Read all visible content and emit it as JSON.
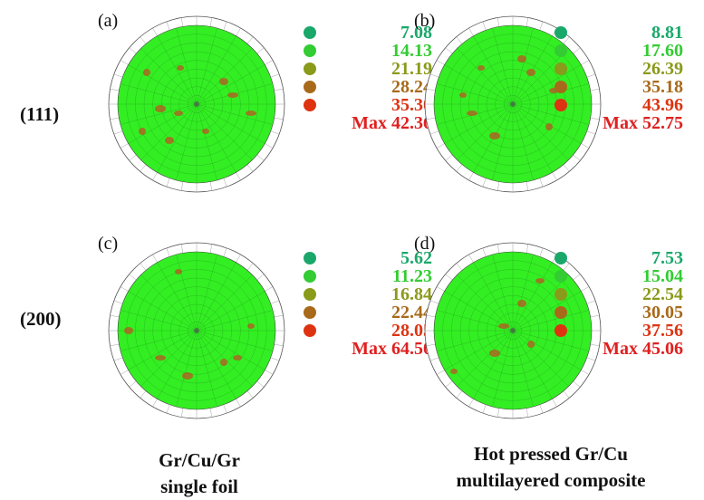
{
  "rows": [
    {
      "label": "(111)"
    },
    {
      "label": "(200)"
    }
  ],
  "columns": [
    {
      "label_line1": "Gr/Cu/Gr",
      "label_line2": "single foil"
    },
    {
      "label_line1": "Hot pressed Gr/Cu",
      "label_line2": "multilayered composite"
    }
  ],
  "level_colors": [
    "#1aa86a",
    "#33cc33",
    "#8a9a1a",
    "#a86a1a",
    "#dd3311"
  ],
  "max_color": "#e02020",
  "pole_figures": [
    {
      "label": "(a)",
      "levels": [
        "7.08",
        "14.13",
        "21.19",
        "28.24",
        "35.30"
      ],
      "max_text": "Max 42.36"
    },
    {
      "label": "(b)",
      "levels": [
        "8.81",
        "17.60",
        "26.39",
        "35.18",
        "43.96"
      ],
      "max_text": "Max 52.75"
    },
    {
      "label": "(c)",
      "levels": [
        "5.62",
        "11.23",
        "16.84",
        "22.44",
        "28.05"
      ],
      "max_text": "Max 64.50"
    },
    {
      "label": "(d)",
      "levels": [
        "7.53",
        "15.04",
        "22.54",
        "30.05",
        "37.56"
      ],
      "max_text": "Max 45.06"
    }
  ]
}
